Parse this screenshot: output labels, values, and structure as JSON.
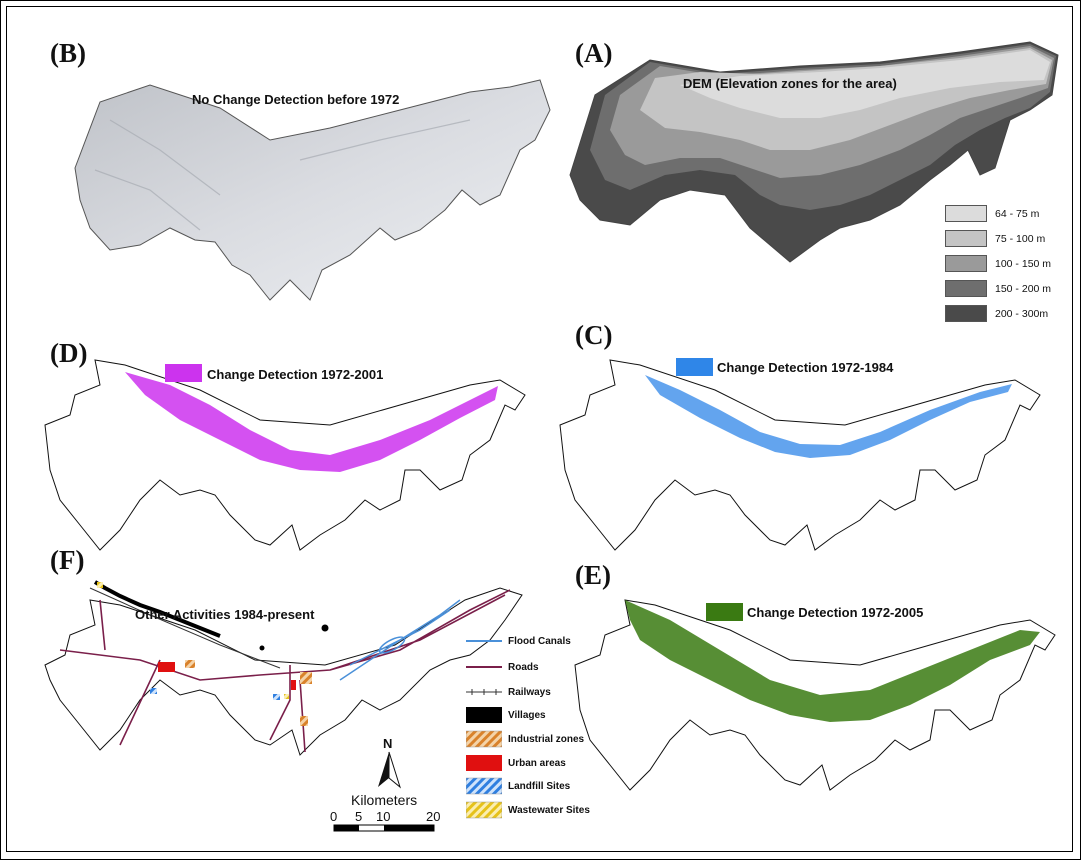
{
  "panels": {
    "b": {
      "letter": "(B)",
      "title": "No Change Detection before 1972"
    },
    "a": {
      "letter": "(A)",
      "title": "DEM (Elevation zones for the area)"
    },
    "d": {
      "letter": "(D)",
      "title": "Change Detection 1972-2001",
      "color": "#cc33ee"
    },
    "c": {
      "letter": "(C)",
      "title": "Change Detection 1972-1984",
      "color": "#2f86e8"
    },
    "f": {
      "letter": "(F)",
      "title": "Other Activities 1984-present"
    },
    "e": {
      "letter": "(E)",
      "title": "Change Detection 1972-2005",
      "color": "#3a7a12"
    }
  },
  "dem_legend": [
    {
      "label": "64 - 75 m",
      "color": "#dcdcdc"
    },
    {
      "label": "75 - 100 m",
      "color": "#c4c4c4"
    },
    {
      "label": "100 - 150 m",
      "color": "#9a9a9a"
    },
    {
      "label": "150 - 200 m",
      "color": "#6e6e6e"
    },
    {
      "label": "200 - 300m",
      "color": "#4a4a4a"
    }
  ],
  "activities_legend": [
    {
      "label": "Flood Canals",
      "icon": "line-icon",
      "color": "#4a90d9"
    },
    {
      "label": "Roads",
      "icon": "line-icon",
      "color": "#7a1f4a"
    },
    {
      "label": "Railways",
      "icon": "railway-icon",
      "color": "#333333"
    },
    {
      "label": "Villages",
      "icon": "fill-icon",
      "color": "#000000"
    },
    {
      "label": "Industrial zones",
      "icon": "hatch-icon",
      "color": "#d9822b"
    },
    {
      "label": "Urban areas",
      "icon": "fill-icon",
      "color": "#e01010"
    },
    {
      "label": "Landfill Sites",
      "icon": "hatch-icon",
      "color": "#2f7fe0"
    },
    {
      "label": "Wastewater Sites",
      "icon": "hatch-icon",
      "color": "#e6c21a"
    }
  ],
  "north_arrow": {
    "label": "N"
  },
  "scale_bar": {
    "title": "Kilometers",
    "ticks": [
      "0",
      "5",
      "10",
      "20"
    ]
  }
}
